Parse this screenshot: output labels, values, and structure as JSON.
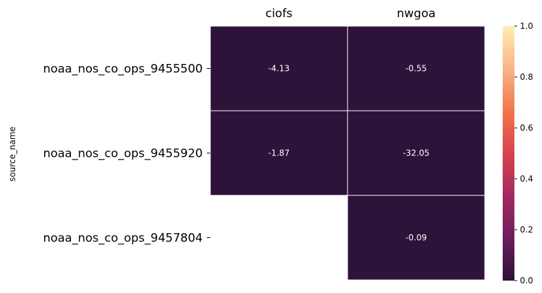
{
  "chart_data": {
    "type": "heatmap",
    "title": "",
    "xlabel": "",
    "ylabel": "source_name",
    "columns": [
      "ciofs",
      "nwgoa"
    ],
    "rows": [
      "noaa_nos_co_ops_9455500",
      "noaa_nos_co_ops_9455920",
      "noaa_nos_co_ops_9457804"
    ],
    "values": [
      [
        -4.13,
        -0.55
      ],
      [
        -1.87,
        -32.05
      ],
      [
        null,
        -0.09
      ]
    ],
    "value_labels": [
      [
        "-4.13",
        "-0.55"
      ],
      [
        "-1.87",
        "-32.05"
      ],
      [
        null,
        "-0.09"
      ]
    ],
    "colorbar": {
      "range": [
        0.0,
        1.0
      ],
      "ticks": [
        "0.0",
        "0.2",
        "0.4",
        "0.6",
        "0.8",
        "1.0"
      ],
      "colormap": "magma-like (dark purple to pale yellow)"
    },
    "colors": {
      "cell_fill": "#2d1239",
      "cell_text": "#ffffff",
      "grid_line": "#ffffff",
      "colormap_stops": [
        "#2d1239",
        "#6c1d5e",
        "#a12a60",
        "#d8424f",
        "#f2754a",
        "#f9b48a",
        "#feeeb0"
      ]
    },
    "grid": false,
    "legend": "colorbar-right"
  }
}
